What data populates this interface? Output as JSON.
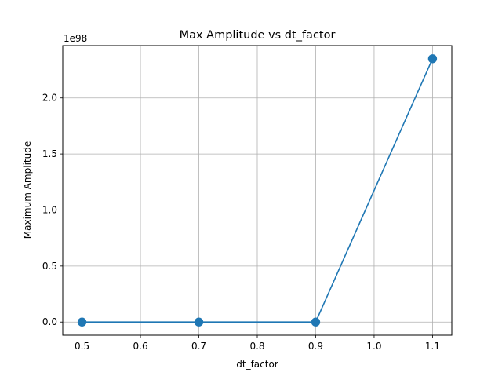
{
  "chart_data": {
    "type": "line",
    "title": "Max Amplitude vs dt_factor",
    "xlabel": "dt_factor",
    "ylabel": "Maximum Amplitude",
    "y_offset_label": "1e98",
    "xlim": [
      0.467,
      1.133
    ],
    "ylim": [
      -0.1175,
      2.4675
    ],
    "x_ticks": [
      0.5,
      0.6,
      0.7,
      0.8,
      0.9,
      1.0,
      1.1
    ],
    "x_tick_labels": [
      "0.5",
      "0.6",
      "0.7",
      "0.8",
      "0.9",
      "1.0",
      "1.1"
    ],
    "y_ticks": [
      0.0,
      0.5,
      1.0,
      1.5,
      2.0
    ],
    "y_tick_labels": [
      "0.0",
      "0.5",
      "1.0",
      "1.5",
      "2.0"
    ],
    "grid": true,
    "series": [
      {
        "x": [
          0.5,
          0.7,
          0.9,
          1.1
        ],
        "y": [
          0.0,
          0.0,
          0.0,
          2.35
        ],
        "color": "#1f77b4",
        "marker": "circle"
      }
    ]
  }
}
